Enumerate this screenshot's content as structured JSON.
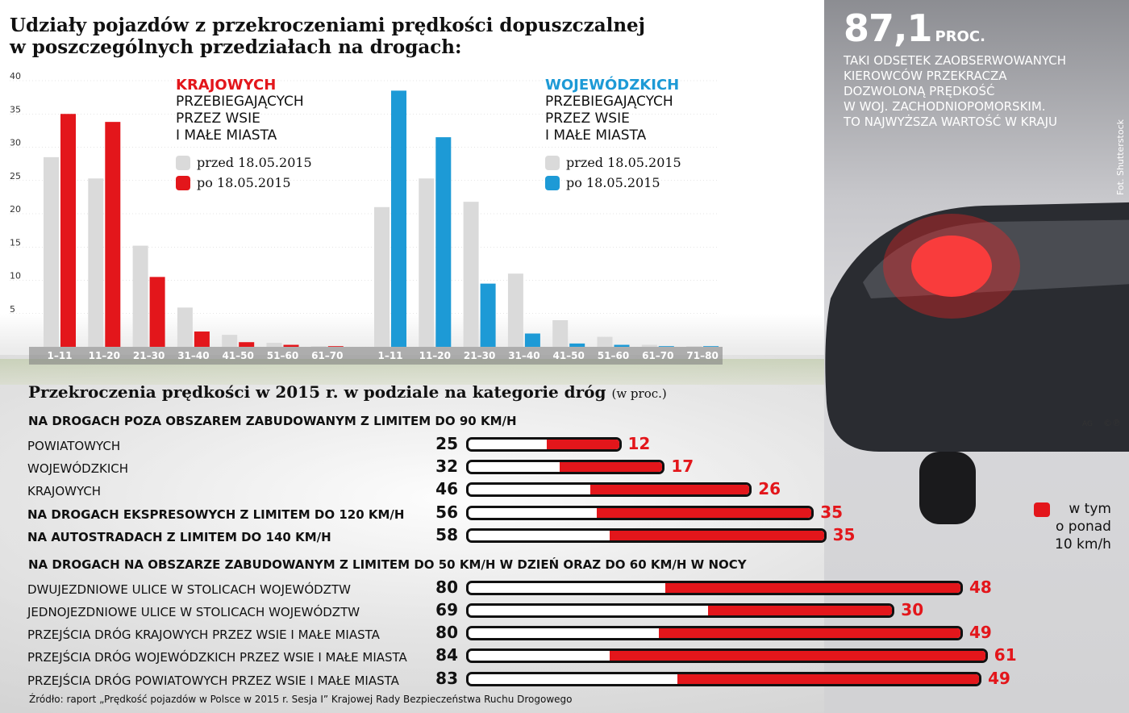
{
  "title_line1": "Udziały pojazdów z przekroczeniami prędkości dopuszczalnej",
  "title_line2": "w poszczególnych przedziałach na drogach:",
  "stat": {
    "value": "87,1",
    "unit": "PROC.",
    "desc": [
      "TAKI ODSETEK ZAOBSERWOWANYCH",
      "KIEROWCÓW PRZEKRACZA",
      "DOZWOLONĄ PRĘDKOŚĆ",
      "W WOJ. ZACHODNIOPOMORSKIM.",
      "TO NAJWYŻSZA WARTOŚĆ W KRAJU"
    ]
  },
  "credit": "Fot. Shutterstock",
  "ag": "AG",
  "copyright": "©℗",
  "legend_krajowe": {
    "head": "KRAJOWYCH",
    "lines": [
      "PRZEBIEGAJĄCYCH",
      "PRZEZ WSIE",
      "I MAŁE MIASTA"
    ],
    "before": "przed 18.05.2015",
    "after": "po 18.05.2015"
  },
  "legend_wojewodzkie": {
    "head": "WOJEWÓDZKICH",
    "lines": [
      "PRZEBIEGAJĄCYCH",
      "PRZEZ WSIE",
      "I MAŁE MIASTA"
    ],
    "before": "przed 18.05.2015",
    "after": "po 18.05.2015"
  },
  "colors": {
    "red": "#e3161b",
    "blue": "#1d9ad6",
    "gray": "#dadada"
  },
  "chart_data": [
    {
      "type": "bar",
      "title": "KRAJOWYCH PRZEBIEGAJĄCYCH PRZEZ WSIE I MAŁE MIASTA",
      "categories": [
        "1–11",
        "11–20",
        "21–30",
        "31–40",
        "41–50",
        "51–60",
        "61–70"
      ],
      "series": [
        {
          "name": "przed 18.05.2015",
          "values": [
            28.5,
            25.3,
            15.2,
            5.9,
            1.8,
            0.6,
            0.1
          ]
        },
        {
          "name": "po 18.05.2015",
          "values": [
            35.0,
            33.8,
            10.5,
            2.3,
            0.7,
            0.3,
            0.1
          ]
        }
      ],
      "ylim": [
        0,
        40
      ],
      "yticks": [
        5,
        10,
        15,
        20,
        25,
        30,
        35,
        40
      ]
    },
    {
      "type": "bar",
      "title": "WOJEWÓDZKICH PRZEBIEGAJĄCYCH PRZEZ WSIE I MAŁE MIASTA",
      "categories": [
        "1–11",
        "11–20",
        "21–30",
        "31–40",
        "41–50",
        "51–60",
        "61–70",
        "71–80"
      ],
      "series": [
        {
          "name": "przed 18.05.2015",
          "values": [
            21.0,
            25.3,
            21.8,
            11.0,
            4.0,
            1.5,
            0.3,
            0.1
          ]
        },
        {
          "name": "po 18.05.2015",
          "values": [
            38.5,
            31.5,
            9.5,
            2.0,
            0.5,
            0.3,
            0.1,
            0.1
          ]
        }
      ],
      "ylim": [
        0,
        40
      ]
    },
    {
      "type": "bar",
      "title": "Przekroczenia prędkości w 2015 r. w podziale na kategorie dróg",
      "unit": "(w proc.)",
      "groups": [
        {
          "head": "NA DROGACH POZA OBSZAREM ZABUDOWANYM Z LIMITEM DO 90 KM/H",
          "rows": [
            {
              "label": "POWIATOWYCH",
              "value": 25,
              "over10": 12,
              "bold": false
            },
            {
              "label": "WOJEWÓDZKICH",
              "value": 32,
              "over10": 17,
              "bold": false
            },
            {
              "label": "KRAJOWYCH",
              "value": 46,
              "over10": 26,
              "bold": false
            },
            {
              "label": "NA DROGACH EKSPRESOWYCH Z LIMITEM DO 120 KM/H",
              "value": 56,
              "over10": 35,
              "bold": true
            },
            {
              "label": "NA AUTOSTRADACH Z LIMITEM DO 140 KM/H",
              "value": 58,
              "over10": 35,
              "bold": true
            }
          ]
        },
        {
          "head": "NA DROGACH NA OBSZARZE ZABUDOWANYM Z LIMITEM DO 50 KM/H W DZIEŃ ORAZ DO 60 KM/H W NOCY",
          "rows": [
            {
              "label": "DWUJEZDNIOWE ULICE W STOLICACH WOJEWÓDZTW",
              "value": 80,
              "over10": 48,
              "bold": false
            },
            {
              "label": "JEDNOJEZDNIOWE ULICE W STOLICACH WOJEWÓDZTW",
              "value": 69,
              "over10": 30,
              "bold": false
            },
            {
              "label": "PRZEJŚCIA DRÓG KRAJOWYCH PRZEZ WSIE I MAŁE MIASTA",
              "value": 80,
              "over10": 49,
              "bold": false
            },
            {
              "label": "PRZEJŚCIA DRÓG WOJEWÓDZKICH PRZEZ WSIE I MAŁE MIASTA",
              "value": 84,
              "over10": 61,
              "bold": false
            },
            {
              "label": "PRZEJŚCIA DRÓG POWIATOWYCH PRZEZ WSIE I MAŁE MIASTA",
              "value": 83,
              "over10": 49,
              "bold": false
            }
          ]
        }
      ],
      "legend": [
        "w tym",
        "o ponad",
        "10 km/h"
      ]
    }
  ],
  "source": "Źródło: raport „Prędkość pojazdów w Polsce w 2015 r. Sesja I” Krajowej Rady Bezpieczeństwa Ruchu Drogowego"
}
